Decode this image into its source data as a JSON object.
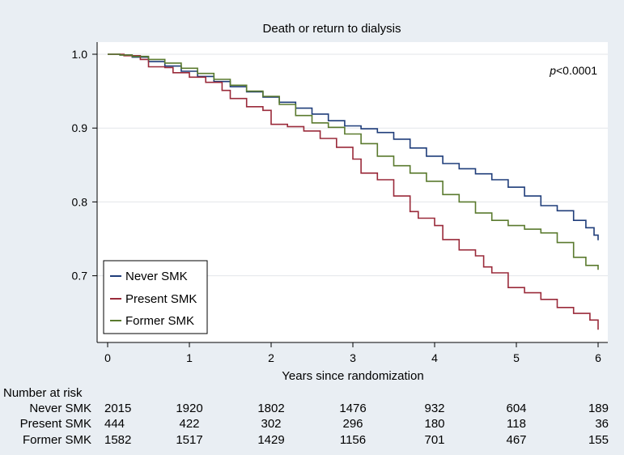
{
  "chart_data": {
    "type": "line",
    "title": "Death or return to dialysis",
    "xlabel": "Years since randomization",
    "ylabel": "",
    "xlim": [
      0,
      6
    ],
    "ylim": [
      0.625,
      1.0
    ],
    "x_ticks": [
      "0",
      "1",
      "2",
      "3",
      "4",
      "5",
      "6"
    ],
    "y_ticks": [
      "1.0",
      "0.9",
      "0.8",
      "0.7"
    ],
    "grid": true,
    "annotation": {
      "italic": "p",
      "rest": "<0.0001"
    },
    "legend_position": "bottom-left",
    "series": [
      {
        "name": "Never SMK",
        "color": "#1f3d7a",
        "x": [
          0,
          0.15,
          0.3,
          0.5,
          0.7,
          0.9,
          1.1,
          1.3,
          1.5,
          1.7,
          1.9,
          2.1,
          2.3,
          2.5,
          2.7,
          2.9,
          3.1,
          3.3,
          3.5,
          3.7,
          3.9,
          4.1,
          4.3,
          4.5,
          4.7,
          4.9,
          5.1,
          5.3,
          5.5,
          5.7,
          5.85,
          5.95,
          6.0
        ],
        "y": [
          1.0,
          0.999,
          0.996,
          0.99,
          0.984,
          0.977,
          0.97,
          0.963,
          0.956,
          0.949,
          0.942,
          0.935,
          0.927,
          0.919,
          0.91,
          0.903,
          0.899,
          0.894,
          0.885,
          0.873,
          0.862,
          0.852,
          0.845,
          0.838,
          0.83,
          0.82,
          0.808,
          0.795,
          0.788,
          0.775,
          0.765,
          0.755,
          0.748
        ]
      },
      {
        "name": "Present SMK",
        "color": "#9a2a3a",
        "x": [
          0,
          0.2,
          0.4,
          0.5,
          0.7,
          0.8,
          1.0,
          1.2,
          1.4,
          1.5,
          1.7,
          1.9,
          2.0,
          2.2,
          2.4,
          2.6,
          2.8,
          3.0,
          3.1,
          3.3,
          3.5,
          3.7,
          3.8,
          4.0,
          4.1,
          4.3,
          4.5,
          4.6,
          4.7,
          4.9,
          5.1,
          5.3,
          5.5,
          5.7,
          5.9,
          6.0
        ],
        "y": [
          1.0,
          0.998,
          0.993,
          0.983,
          0.982,
          0.975,
          0.969,
          0.962,
          0.951,
          0.94,
          0.929,
          0.924,
          0.905,
          0.902,
          0.896,
          0.886,
          0.874,
          0.858,
          0.839,
          0.83,
          0.808,
          0.787,
          0.778,
          0.768,
          0.749,
          0.735,
          0.727,
          0.712,
          0.704,
          0.684,
          0.677,
          0.668,
          0.657,
          0.649,
          0.64,
          0.627
        ]
      },
      {
        "name": "Former SMK",
        "color": "#5a7a2e",
        "x": [
          0,
          0.15,
          0.3,
          0.5,
          0.7,
          0.9,
          1.1,
          1.3,
          1.5,
          1.7,
          1.9,
          2.1,
          2.3,
          2.5,
          2.7,
          2.9,
          3.1,
          3.3,
          3.5,
          3.7,
          3.9,
          4.1,
          4.3,
          4.5,
          4.7,
          4.9,
          5.1,
          5.3,
          5.5,
          5.7,
          5.85,
          6.0
        ],
        "y": [
          1.0,
          0.999,
          0.997,
          0.993,
          0.988,
          0.981,
          0.974,
          0.966,
          0.958,
          0.95,
          0.943,
          0.932,
          0.917,
          0.907,
          0.901,
          0.892,
          0.879,
          0.862,
          0.849,
          0.839,
          0.828,
          0.81,
          0.8,
          0.785,
          0.775,
          0.768,
          0.763,
          0.758,
          0.745,
          0.725,
          0.714,
          0.708
        ]
      }
    ],
    "risk_table": {
      "header": "Number at risk",
      "columns_at_x": [
        0,
        1,
        2,
        3,
        4,
        5,
        6
      ],
      "rows": [
        {
          "label": "Never SMK",
          "values": [
            "2015",
            "1920",
            "1802",
            "1476",
            "932",
            "604",
            "189"
          ]
        },
        {
          "label": "Present SMK",
          "values": [
            "444",
            "422",
            "302",
            "296",
            "180",
            "118",
            "36"
          ]
        },
        {
          "label": "Former SMK",
          "values": [
            "1582",
            "1517",
            "1429",
            "1156",
            "701",
            "467",
            "155"
          ]
        }
      ]
    }
  }
}
